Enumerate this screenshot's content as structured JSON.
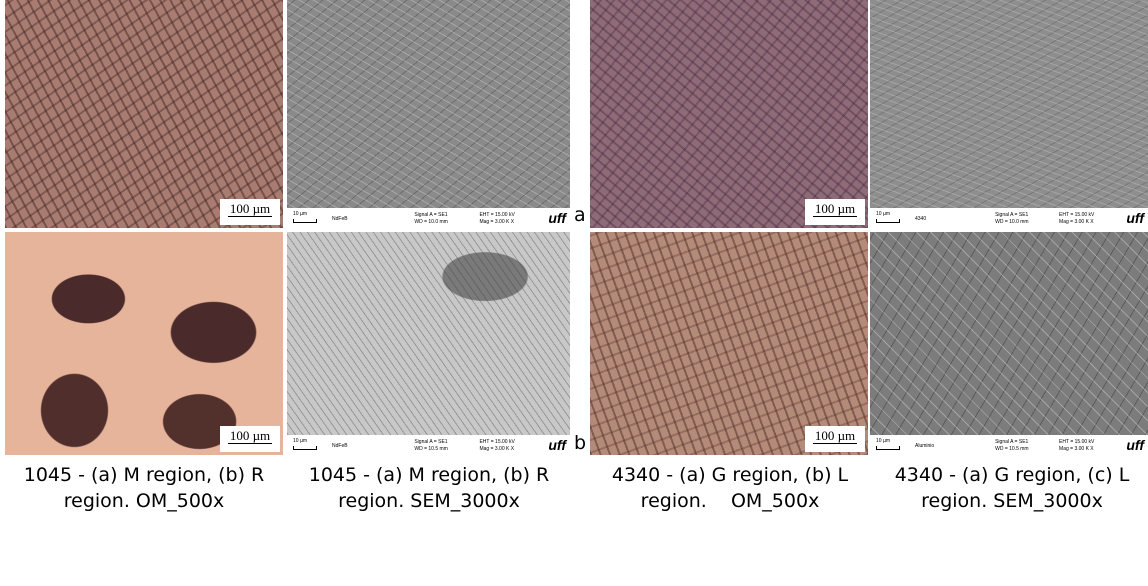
{
  "figure": {
    "om_panels": [
      {
        "scale": "100 µm"
      },
      {
        "scale": "100 µm"
      },
      {
        "scale": "100 µm"
      },
      {
        "scale": "100 µm"
      }
    ],
    "sem_panels": [
      {
        "scale": "10 µm",
        "sample": "NdFeB",
        "signal": "Signal A = SE1",
        "wd": "WD = 10.0 mm",
        "eht": "EHT = 15.00 kV",
        "mag": "Mag = 3.00 K X",
        "logo": "uff"
      },
      {
        "scale": "10 µm",
        "sample": "NdFeB",
        "signal": "Signal A = SE1",
        "wd": "WD = 10.5 mm",
        "eht": "EHT = 15.00 kV",
        "mag": "Mag = 3.00 K X",
        "logo": "uff"
      },
      {
        "scale": "10 µm",
        "sample": "4340",
        "signal": "Signal A = SE1",
        "wd": "WD = 10.0 mm",
        "eht": "EHT = 15.00 kV",
        "mag": "Mag = 3.00 K X",
        "logo": "uff"
      },
      {
        "scale": "10 µm",
        "sample": "Aluminio",
        "signal": "Signal A = SE1",
        "wd": "WD = 10.5 mm",
        "eht": "EHT = 15.00 kV",
        "mag": "Mag = 3.00 K X",
        "logo": "uff"
      }
    ],
    "row_labels": [
      "a",
      "b"
    ],
    "captions": [
      "1045 - (a) M region, (b) R region. OM_500x",
      "1045 - (a) M region, (b) R region. SEM_3000x",
      "4340 - (a) G region, (b) L region.    OM_500x",
      "4340 - (a) G region, (c) L region. SEM_3000x"
    ]
  }
}
